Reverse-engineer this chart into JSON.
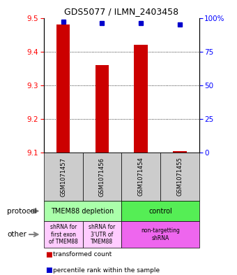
{
  "title": "GDS5077 / ILMN_2403458",
  "samples": [
    "GSM1071457",
    "GSM1071456",
    "GSM1071454",
    "GSM1071455"
  ],
  "bar_values": [
    9.48,
    9.36,
    9.42,
    9.105
  ],
  "bar_bottom": 9.1,
  "percentile_values": [
    97,
    96,
    96,
    95
  ],
  "ylim_left": [
    9.1,
    9.5
  ],
  "ylim_right": [
    0,
    100
  ],
  "yticks_left": [
    9.1,
    9.2,
    9.3,
    9.4,
    9.5
  ],
  "yticks_right": [
    0,
    25,
    50,
    75,
    100
  ],
  "bar_color": "#cc0000",
  "percentile_color": "#0000cc",
  "sample_box_color": "#cccccc",
  "protocol_groups": [
    {
      "label": "TMEM88 depletion",
      "span": [
        0,
        2
      ],
      "color": "#aaffaa"
    },
    {
      "label": "control",
      "span": [
        2,
        4
      ],
      "color": "#55ee55"
    }
  ],
  "other_groups": [
    {
      "label": "shRNA for\nfirst exon\nof TMEM88",
      "span": [
        0,
        1
      ],
      "color": "#ffccff"
    },
    {
      "label": "shRNA for\n3'UTR of\nTMEM88",
      "span": [
        1,
        2
      ],
      "color": "#ffccff"
    },
    {
      "label": "non-targetting\nshRNA",
      "span": [
        2,
        4
      ],
      "color": "#ee66ee"
    }
  ],
  "legend": [
    {
      "label": "transformed count",
      "color": "#cc0000"
    },
    {
      "label": "percentile rank within the sample",
      "color": "#0000cc"
    }
  ],
  "fig_width": 3.4,
  "fig_height": 3.93,
  "dpi": 100
}
